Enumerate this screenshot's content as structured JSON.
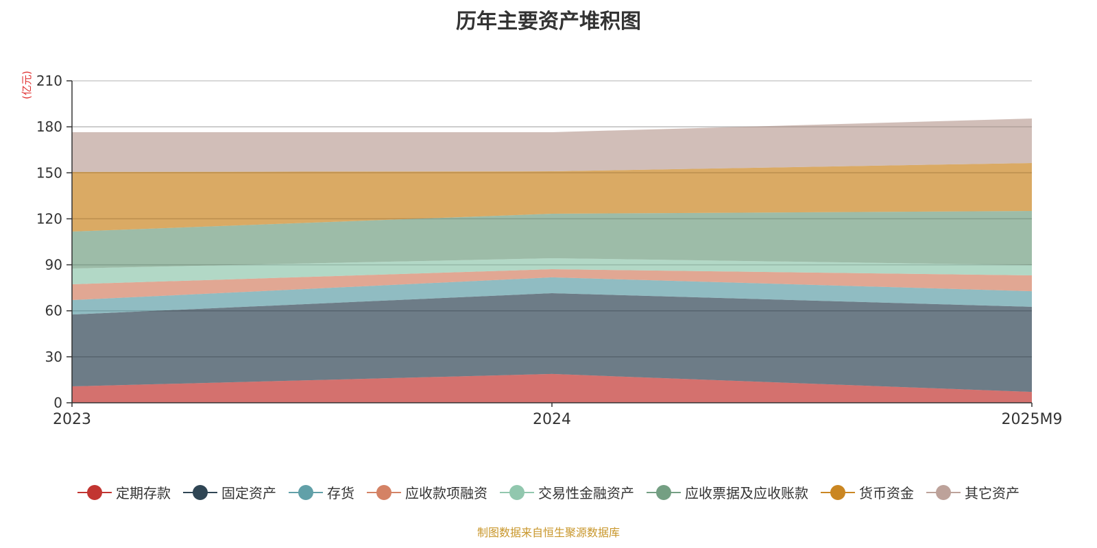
{
  "chart_data": {
    "type": "area",
    "stacked": true,
    "title": "历年主要资产堆积图",
    "ylabel": "(亿元)",
    "xlabel": "",
    "categories": [
      "2023",
      "2024",
      "2025M9"
    ],
    "ylim": [
      0,
      210
    ],
    "yticks": [
      0,
      30,
      60,
      90,
      120,
      150,
      180,
      210
    ],
    "grid": true,
    "legend_position": "bottom",
    "series": [
      {
        "name": "定期存款",
        "color": "#c23531",
        "values": [
          10.7,
          18.8,
          7.1
        ]
      },
      {
        "name": "固定资产",
        "color": "#2f4554",
        "values": [
          46.9,
          52.7,
          55.5
        ]
      },
      {
        "name": "存货",
        "color": "#61a0a8",
        "values": [
          9.4,
          10.3,
          10.2
        ]
      },
      {
        "name": "应收款项融资",
        "color": "#d48265",
        "values": [
          10.3,
          5.3,
          10.3
        ]
      },
      {
        "name": "交易性金融资产",
        "color": "#91c7ae",
        "values": [
          10.3,
          7.2,
          6.7
        ]
      },
      {
        "name": "应收票据及应收账款",
        "color": "#749f83",
        "values": [
          24.1,
          29.0,
          35.3
        ]
      },
      {
        "name": "货币资金",
        "color": "#ca8622",
        "values": [
          38.9,
          27.7,
          31.3
        ]
      },
      {
        "name": "其它资产",
        "color": "#bda29a",
        "values": [
          25.9,
          25.5,
          29.0
        ]
      }
    ]
  },
  "source": "制图数据来自恒生聚源数据库"
}
